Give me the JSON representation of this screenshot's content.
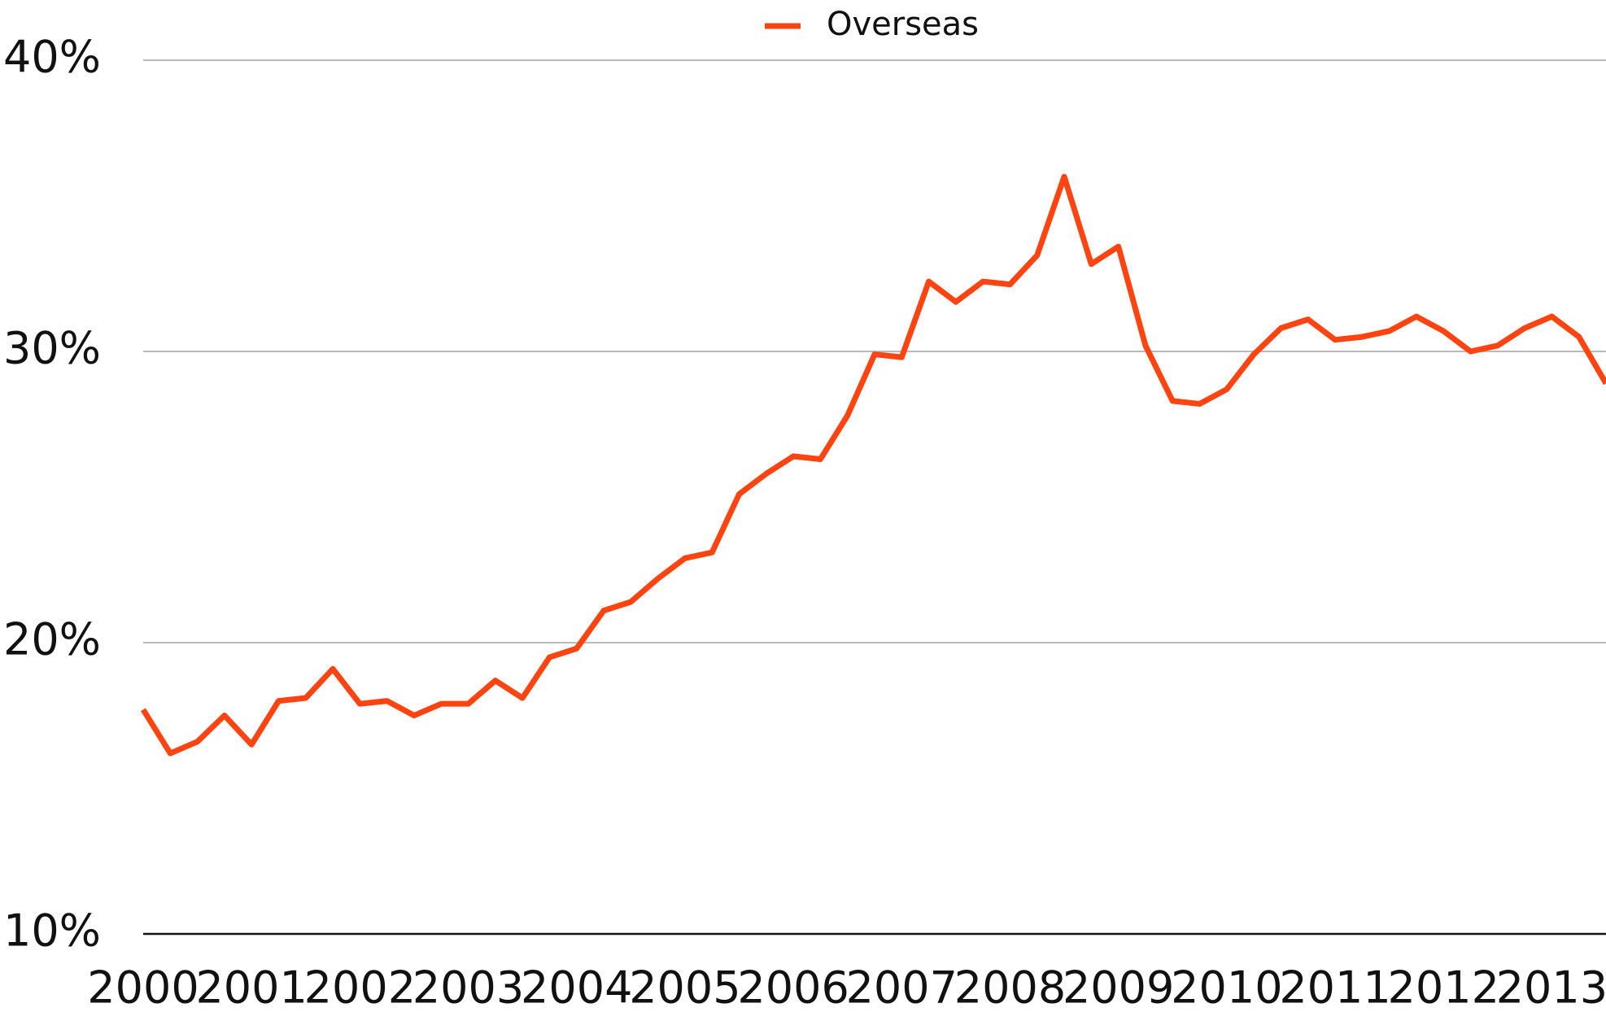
{
  "chart_data": {
    "type": "line",
    "categories": [
      "2000",
      null,
      null,
      null,
      "2001",
      null,
      null,
      null,
      "2002",
      null,
      null,
      null,
      "2003",
      null,
      null,
      null,
      "2004",
      null,
      null,
      null,
      "2005",
      null,
      null,
      null,
      "2006",
      null,
      null,
      null,
      "2007",
      null,
      null,
      null,
      "2008",
      null,
      null,
      null,
      "2009",
      null,
      null,
      null,
      "2010",
      null,
      null,
      null,
      "2011",
      null,
      null,
      null,
      "2012",
      null,
      null,
      null,
      "2013",
      null,
      null
    ],
    "series": [
      {
        "name": "Overseas",
        "color": "#ff4411",
        "values": [
          17.7,
          16.2,
          16.6,
          17.5,
          16.5,
          18.0,
          18.1,
          19.1,
          17.9,
          18.0,
          17.5,
          17.9,
          17.9,
          18.7,
          18.1,
          19.5,
          19.8,
          21.1,
          21.4,
          22.2,
          22.9,
          23.1,
          25.1,
          25.8,
          26.4,
          26.3,
          27.8,
          29.9,
          29.8,
          32.4,
          31.7,
          32.4,
          32.3,
          33.3,
          36.0,
          33.0,
          33.6,
          30.2,
          28.3,
          28.2,
          28.7,
          29.9,
          30.8,
          31.1,
          30.4,
          30.5,
          30.7,
          31.2,
          30.7,
          30.0,
          30.2,
          30.8,
          31.2,
          30.5,
          28.9
        ]
      }
    ],
    "ylim": [
      10,
      40
    ],
    "yticks": [
      {
        "value": 10,
        "label": "10%"
      },
      {
        "value": 20,
        "label": "20%"
      },
      {
        "value": 30,
        "label": "30%"
      },
      {
        "value": 40,
        "label": "40%"
      }
    ],
    "grid": true,
    "legend": "top"
  }
}
